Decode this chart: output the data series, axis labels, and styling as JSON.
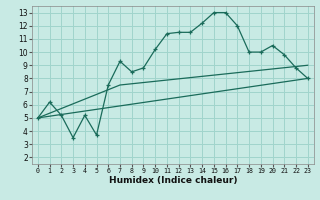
{
  "xlabel": "Humidex (Indice chaleur)",
  "ylabel": "",
  "bg_color": "#c8eae4",
  "grid_color": "#a0d4cc",
  "line_color": "#1a6b5a",
  "xlim": [
    -0.5,
    23.5
  ],
  "ylim": [
    1.5,
    13.5
  ],
  "xticks": [
    0,
    1,
    2,
    3,
    4,
    5,
    6,
    7,
    8,
    9,
    10,
    11,
    12,
    13,
    14,
    15,
    16,
    17,
    18,
    19,
    20,
    21,
    22,
    23
  ],
  "yticks": [
    2,
    3,
    4,
    5,
    6,
    7,
    8,
    9,
    10,
    11,
    12,
    13
  ],
  "main_line_x": [
    0,
    1,
    2,
    3,
    4,
    5,
    6,
    7,
    8,
    9,
    10,
    11,
    12,
    13,
    14,
    15,
    16,
    17,
    18,
    19,
    20,
    21,
    22,
    23
  ],
  "main_line_y": [
    5.0,
    6.2,
    5.2,
    3.5,
    5.2,
    3.7,
    7.5,
    9.3,
    8.5,
    8.8,
    10.2,
    11.4,
    11.5,
    11.5,
    12.2,
    13.0,
    13.0,
    12.0,
    10.0,
    10.0,
    10.5,
    9.8,
    8.8,
    8.0
  ],
  "lower_line_x": [
    0,
    23
  ],
  "lower_line_y": [
    5.0,
    8.0
  ],
  "upper_line_x": [
    0,
    7,
    23
  ],
  "upper_line_y": [
    5.0,
    7.5,
    9.0
  ]
}
